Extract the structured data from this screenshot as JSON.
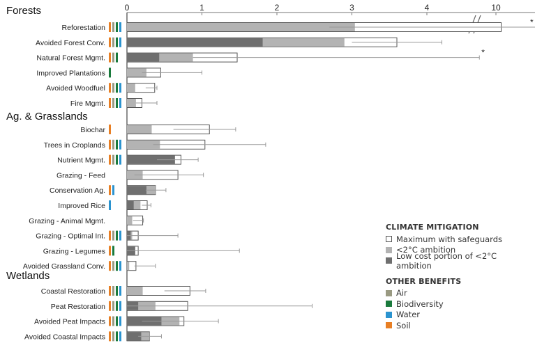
{
  "chart_data": {
    "type": "bar",
    "orientation": "horizontal",
    "x_ticks": [
      "0",
      "1",
      "2",
      "3",
      "4",
      "10"
    ],
    "axis_break_between": [
      4.7,
      10
    ],
    "series": [
      {
        "name": "Maximum with safeguards"
      },
      {
        "name": "<2°C ambition"
      },
      {
        "name": "Low cost portion of <2°C ambition"
      }
    ],
    "colors": {
      "max": "#ffffff",
      "ambition": "#b3b3b3",
      "lowcost": "#6f6f6f",
      "air": "#9a9a82",
      "biodiversity": "#1a7a3c",
      "water": "#2b93cf",
      "soil": "#e87f24"
    },
    "groups": [
      {
        "title": "Forests",
        "items": [
          {
            "label": "Reforestation",
            "lowcost": 0,
            "ambition": 3.04,
            "max": 10.1,
            "err": [
              2.7,
              10.8
            ],
            "star": true,
            "benefits": [
              "soil",
              "air",
              "biodiversity",
              "water"
            ]
          },
          {
            "label": "Avoided Forest Conv.",
            "lowcost": 1.81,
            "ambition": 2.9,
            "max": 3.6,
            "err": [
              3.0,
              4.2
            ],
            "benefits": [
              "soil",
              "air",
              "biodiversity",
              "water"
            ]
          },
          {
            "label": "Natural Forest Mgmt.",
            "lowcost": 0.43,
            "ambition": 0.88,
            "max": 1.47,
            "err": [
              0.88,
              4.7
            ],
            "star": true,
            "benefits": [
              "soil",
              "air",
              "biodiversity"
            ]
          },
          {
            "label": "Improved Plantations",
            "lowcost": 0,
            "ambition": 0.26,
            "max": 0.45,
            "err": [
              0.2,
              1.0
            ],
            "benefits": [
              "biodiversity"
            ]
          },
          {
            "label": "Avoided Woodfuel",
            "lowcost": 0,
            "ambition": 0.11,
            "max": 0.37,
            "err": [
              0.25,
              0.4
            ],
            "benefits": [
              "soil",
              "air",
              "biodiversity",
              "water"
            ]
          },
          {
            "label": "Fire Mgmt.",
            "lowcost": 0,
            "ambition": 0.12,
            "max": 0.2,
            "err": [
              0.12,
              0.4
            ],
            "benefits": [
              "soil",
              "air",
              "biodiversity",
              "water"
            ]
          }
        ]
      },
      {
        "title": "Ag. & Grasslands",
        "items": [
          {
            "label": "Biochar",
            "lowcost": 0,
            "ambition": 0.33,
            "max": 1.1,
            "err": [
              0.62,
              1.45
            ],
            "benefits": [
              "soil"
            ]
          },
          {
            "label": "Trees in Croplands",
            "lowcost": 0,
            "ambition": 0.44,
            "max": 1.04,
            "err": [
              0.35,
              1.85
            ],
            "benefits": [
              "soil",
              "air",
              "biodiversity",
              "water"
            ]
          },
          {
            "label": "Nutrient Mgmt.",
            "lowcost": 0.64,
            "ambition": 0.64,
            "max": 0.72,
            "err": [
              0.4,
              0.95
            ],
            "benefits": [
              "soil",
              "air",
              "biodiversity",
              "water"
            ]
          },
          {
            "label": "Grazing - Feed",
            "lowcost": 0,
            "ambition": 0.21,
            "max": 0.68,
            "err": [
              0.1,
              1.02
            ],
            "benefits": []
          },
          {
            "label": "Conservation Ag.",
            "lowcost": 0.26,
            "ambition": 0.38,
            "max": 0.38,
            "err": [
              0.25,
              0.52
            ],
            "benefits": [
              "soil",
              "water"
            ]
          },
          {
            "label": "Improved Rice",
            "lowcost": 0.09,
            "ambition": 0.18,
            "max": 0.27,
            "err": [
              0.2,
              0.32
            ],
            "benefits": [
              "water"
            ]
          },
          {
            "label": "Grazing - Animal Mgmt.",
            "lowcost": 0,
            "ambition": 0.07,
            "max": 0.21,
            "err": [
              0.08,
              0.22
            ],
            "benefits": []
          },
          {
            "label": "Grazing - Optimal Int.",
            "lowcost": 0.05,
            "ambition": 0.07,
            "max": 0.15,
            "err": [
              0.0,
              0.68
            ],
            "benefits": [
              "soil",
              "air",
              "biodiversity",
              "water"
            ]
          },
          {
            "label": "Grazing - Legumes",
            "lowcost": 0.11,
            "ambition": 0.11,
            "max": 0.15,
            "err": [
              0.0,
              1.5
            ],
            "benefits": [
              "soil",
              "biodiversity"
            ]
          },
          {
            "label": "Avoided Grassland Conv.",
            "lowcost": 0,
            "ambition": 0.03,
            "max": 0.12,
            "err": [
              0.1,
              0.38
            ],
            "benefits": [
              "soil",
              "air",
              "biodiversity",
              "water"
            ]
          }
        ]
      },
      {
        "title": "Wetlands",
        "items": [
          {
            "label": "Coastal Restoration",
            "lowcost": 0,
            "ambition": 0.21,
            "max": 0.84,
            "err": [
              0.5,
              1.05
            ],
            "benefits": [
              "soil",
              "air",
              "biodiversity",
              "water"
            ]
          },
          {
            "label": "Peat Restoration",
            "lowcost": 0.15,
            "ambition": 0.38,
            "max": 0.81,
            "err": [
              0.0,
              2.47
            ],
            "benefits": [
              "soil",
              "air",
              "biodiversity",
              "water"
            ]
          },
          {
            "label": "Avoided Peat Impacts",
            "lowcost": 0.46,
            "ambition": 0.7,
            "max": 0.76,
            "err": [
              0.2,
              1.22
            ],
            "benefits": [
              "soil",
              "air",
              "biodiversity",
              "water"
            ]
          },
          {
            "label": "Avoided Coastal Impacts",
            "lowcost": 0.19,
            "ambition": 0.3,
            "max": 0.3,
            "err": [
              0.15,
              0.46
            ],
            "benefits": [
              "soil",
              "air",
              "biodiversity",
              "water"
            ]
          }
        ]
      }
    ]
  },
  "legend": {
    "mitigation_title": "CLIMATE MITIGATION",
    "mitigation_items": [
      "Maximum with safeguards",
      "<2°C ambition",
      "Low cost portion of <2°C ambition"
    ],
    "benefits_title": "OTHER BENEFITS",
    "benefit_items": [
      "Air",
      "Biodiversity",
      "Water",
      "Soil"
    ]
  }
}
